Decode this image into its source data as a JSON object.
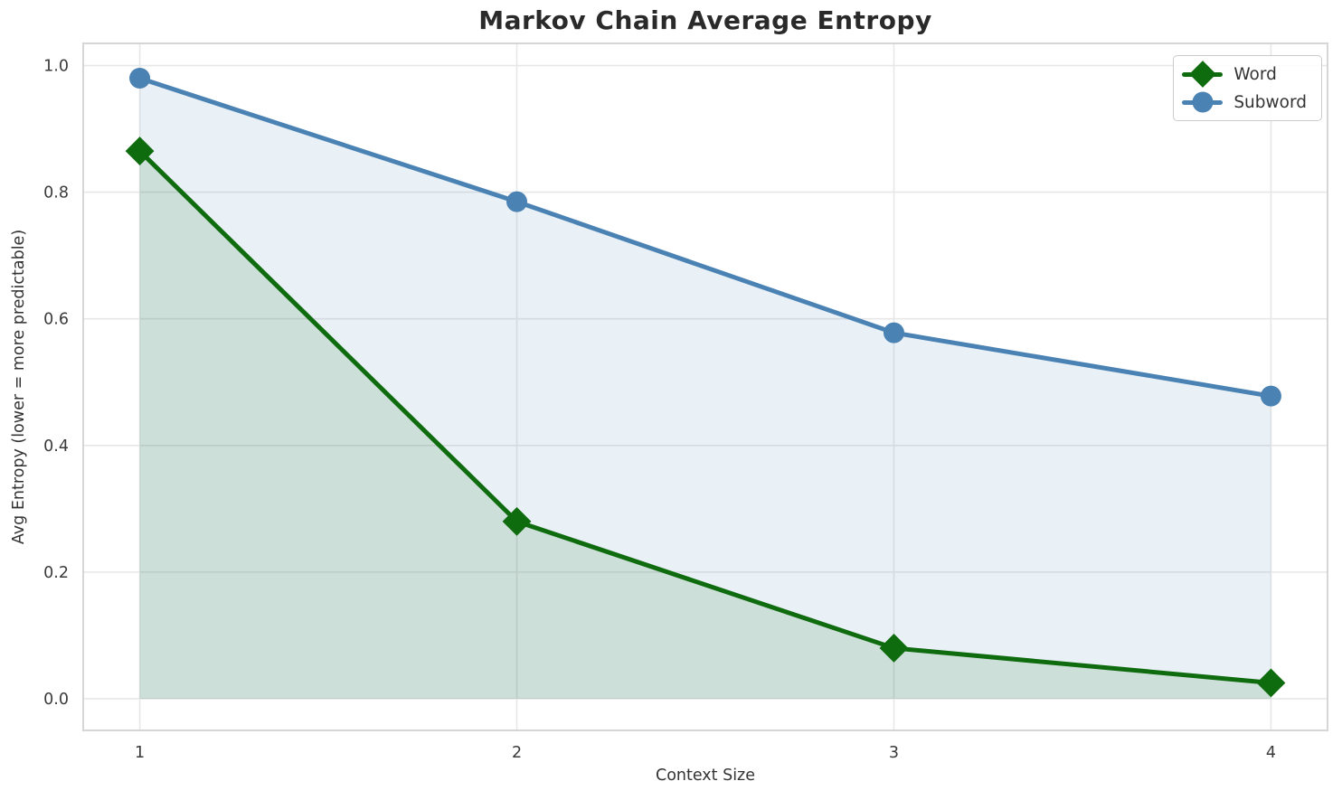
{
  "chart_data": {
    "type": "line",
    "title": "Markov Chain Average Entropy",
    "xlabel": "Context Size",
    "ylabel": "Avg Entropy (lower = more predictable)",
    "x": [
      1,
      2,
      3,
      4
    ],
    "x_tick_labels": [
      "1",
      "2",
      "3",
      "4"
    ],
    "y_tick_values": [
      0.0,
      0.2,
      0.4,
      0.6,
      0.8,
      1.0
    ],
    "y_tick_labels": [
      "0.0",
      "0.2",
      "0.4",
      "0.6",
      "0.8",
      "1.0"
    ],
    "xlim": [
      0.85,
      4.15
    ],
    "ylim": [
      -0.05,
      1.035
    ],
    "grid": true,
    "legend_position": "upper right",
    "baseline": 0.0,
    "series": [
      {
        "name": "Word",
        "marker": "diamond",
        "color": "#0e6b0e",
        "fill": "rgba(20, 105, 25, 0.13)",
        "values": [
          0.865,
          0.28,
          0.08,
          0.025
        ]
      },
      {
        "name": "Subword",
        "marker": "circle",
        "color": "#4a82b4",
        "fill": "rgba(70, 130, 180, 0.12)",
        "values": [
          0.98,
          0.785,
          0.578,
          0.478
        ]
      }
    ],
    "colors": {
      "gridline": "#e7e7e7",
      "frame": "#d2d2d2",
      "tick_text": "#3a3a3a"
    }
  }
}
